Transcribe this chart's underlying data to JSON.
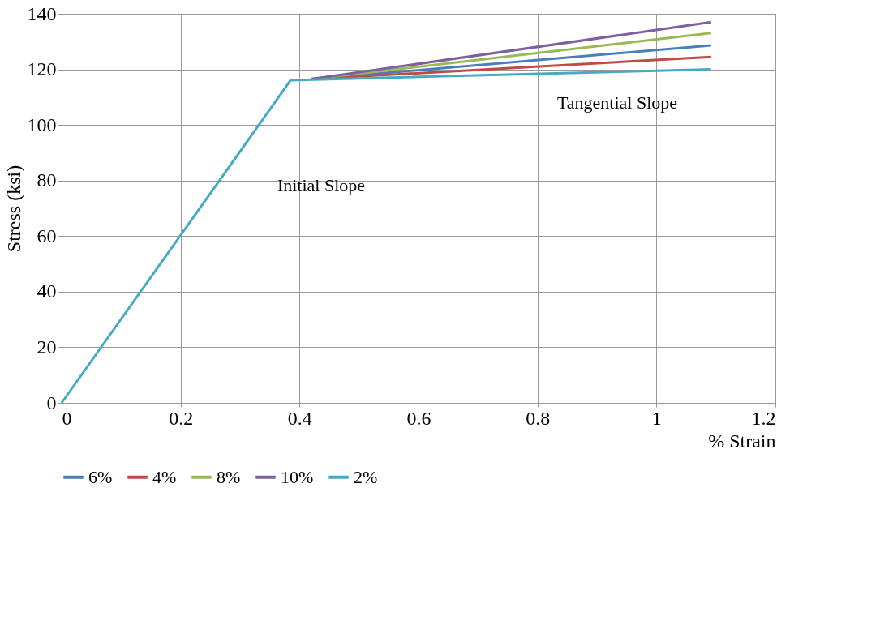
{
  "chart_data": {
    "type": "line",
    "xlabel": "% Strain",
    "ylabel": "Stress (ksi)",
    "xlim": [
      0,
      1.2
    ],
    "xticks": [
      0,
      0.2,
      0.4,
      0.6,
      0.8,
      1,
      1.2
    ],
    "ylim": [
      0,
      140
    ],
    "yticks": [
      0,
      20,
      40,
      60,
      80,
      100,
      120,
      140
    ],
    "grid": true,
    "legend": "bottom",
    "line_style": "solid",
    "marker": "none",
    "series": [
      {
        "name": "6%",
        "color": "#4a7ebb",
        "x": [
          0.42,
          1.092
        ],
        "values": [
          116.5,
          128.6
        ]
      },
      {
        "name": "4%",
        "color": "#be4b48",
        "x": [
          0.42,
          1.092
        ],
        "values": [
          116.5,
          124.5
        ]
      },
      {
        "name": "8%",
        "color": "#98b954",
        "x": [
          0.42,
          1.092
        ],
        "values": [
          116.5,
          133.1
        ]
      },
      {
        "name": "10%",
        "color": "#7d60a0",
        "x": [
          0.42,
          1.092
        ],
        "values": [
          116.5,
          137
        ]
      },
      {
        "name": "2%",
        "color": "#46aac5",
        "x": [
          0,
          0.385,
          1.092
        ],
        "values": [
          0,
          116.1,
          120
        ]
      }
    ],
    "annotations": [
      "Initial Slope",
      "Tangential Slope"
    ]
  }
}
